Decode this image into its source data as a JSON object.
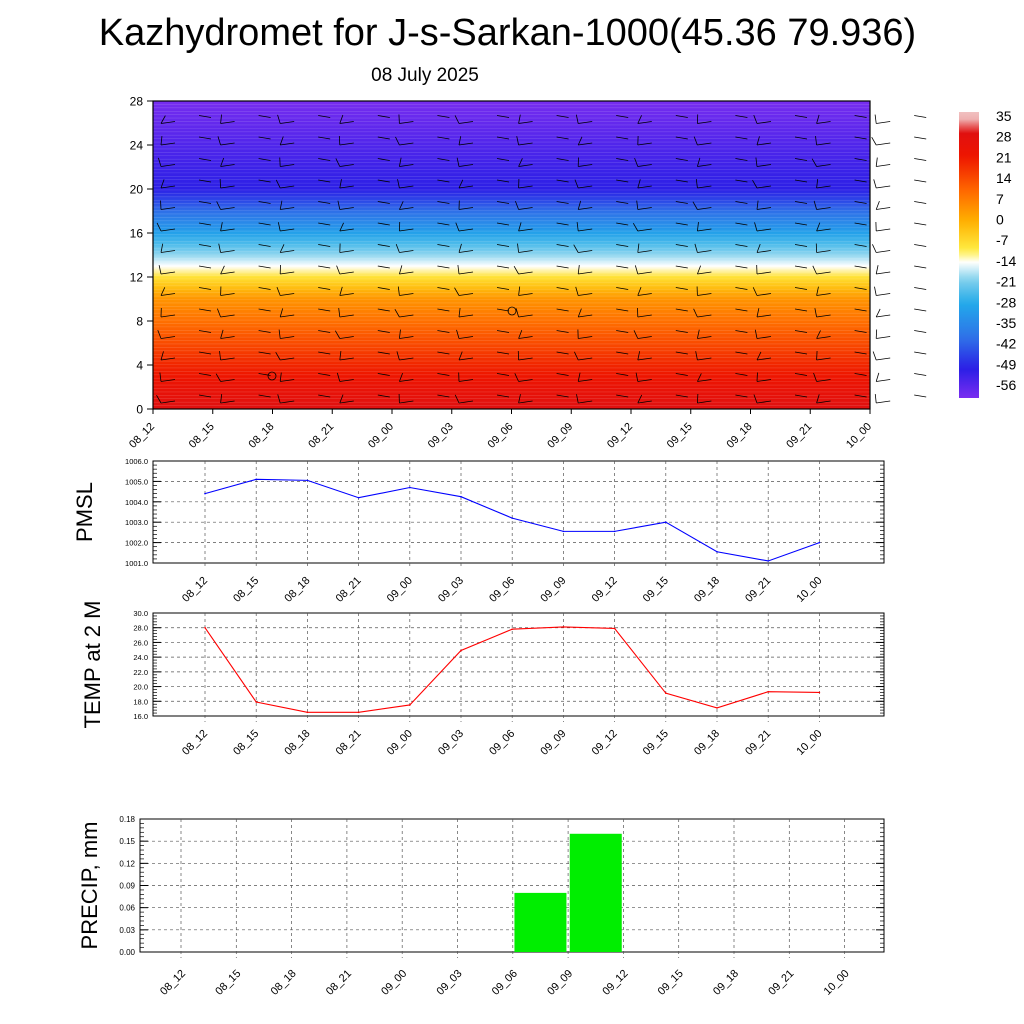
{
  "title": "Kazhydromet for J-s-Sarkan-1000(45.36 79.936)",
  "subtitle": "08 July 2025",
  "chart_data": [
    {
      "type": "heatmap",
      "x_tick_labels": [
        "08_12",
        "08_15",
        "08_18",
        "08_21",
        "09_00",
        "09_03",
        "09_06",
        "09_09",
        "09_12",
        "09_15",
        "09_18",
        "09_21",
        "10_00"
      ],
      "y_tick_labels": [
        "0",
        "4",
        "8",
        "12",
        "16",
        "20",
        "24",
        "28"
      ],
      "ylim": [
        0,
        28
      ],
      "colorbar_labels": [
        "35",
        "28",
        "21",
        "14",
        "7",
        "0",
        "-7",
        "-14",
        "-21",
        "-28",
        "-35",
        "-42",
        "-49",
        "-56"
      ],
      "colorscale": [
        {
          "value": -60,
          "color": "#7a2df0"
        },
        {
          "value": -50,
          "color": "#2a1fe6"
        },
        {
          "value": -40,
          "color": "#2f6fe8"
        },
        {
          "value": -28,
          "color": "#22a9ea"
        },
        {
          "value": -20,
          "color": "#7fd0ec"
        },
        {
          "value": -14,
          "color": "#ffffff"
        },
        {
          "value": -10,
          "color": "#ffee44"
        },
        {
          "value": 0,
          "color": "#ffb000"
        },
        {
          "value": 10,
          "color": "#ff6a00"
        },
        {
          "value": 22,
          "color": "#ee1500"
        },
        {
          "value": 30,
          "color": "#e01010"
        },
        {
          "value": 35,
          "color": "#f0c0c0"
        }
      ]
    },
    {
      "type": "line",
      "ylabel": "PMSL",
      "x_tick_labels": [
        "08_12",
        "08_15",
        "08_18",
        "08_21",
        "09_00",
        "09_03",
        "09_06",
        "09_09",
        "09_12",
        "09_15",
        "09_18",
        "09_21",
        "10_00"
      ],
      "y_tick_labels": [
        "1006.0",
        "1005.0",
        "1004.0",
        "1003.0",
        "1002.0",
        "1001.0"
      ],
      "ylim": [
        1001,
        1006
      ],
      "values": [
        1004.4,
        1005.1,
        1005.05,
        1004.2,
        1004.7,
        1004.25,
        1003.2,
        1002.55,
        1002.55,
        1003.0,
        1001.55,
        1001.1,
        1002.0
      ],
      "color": "#0000ff",
      "grid": true
    },
    {
      "type": "line",
      "ylabel": "TEMP at 2 M",
      "x_tick_labels": [
        "08_12",
        "08_15",
        "08_18",
        "08_21",
        "09_00",
        "09_03",
        "09_06",
        "09_09",
        "09_12",
        "09_15",
        "09_18",
        "09_21",
        "10_00"
      ],
      "y_tick_labels": [
        "30.0",
        "28.0",
        "26.0",
        "24.0",
        "22.0",
        "20.0",
        "18.0",
        "16.0"
      ],
      "ylim": [
        16,
        30
      ],
      "values": [
        28.0,
        17.9,
        16.5,
        16.5,
        17.5,
        24.9,
        27.8,
        28.1,
        27.9,
        19.1,
        17.1,
        19.3,
        19.2
      ],
      "color": "#ff0000",
      "grid": true
    },
    {
      "type": "bar",
      "ylabel": "PRECIP, mm",
      "x_tick_labels": [
        "08_12",
        "08_15",
        "08_18",
        "08_21",
        "09_00",
        "09_03",
        "09_06",
        "09_09",
        "09_12",
        "09_15",
        "09_18",
        "09_21",
        "10_00"
      ],
      "y_tick_labels": [
        "0.18",
        "0.15",
        "0.12",
        "0.09",
        "0.06",
        "0.03",
        "0.00"
      ],
      "ylim": [
        0,
        0.18
      ],
      "values": [
        0,
        0,
        0,
        0,
        0,
        0,
        0,
        0.08,
        0.16,
        0,
        0,
        0,
        0
      ],
      "color": "#00ee00",
      "grid": true
    }
  ]
}
